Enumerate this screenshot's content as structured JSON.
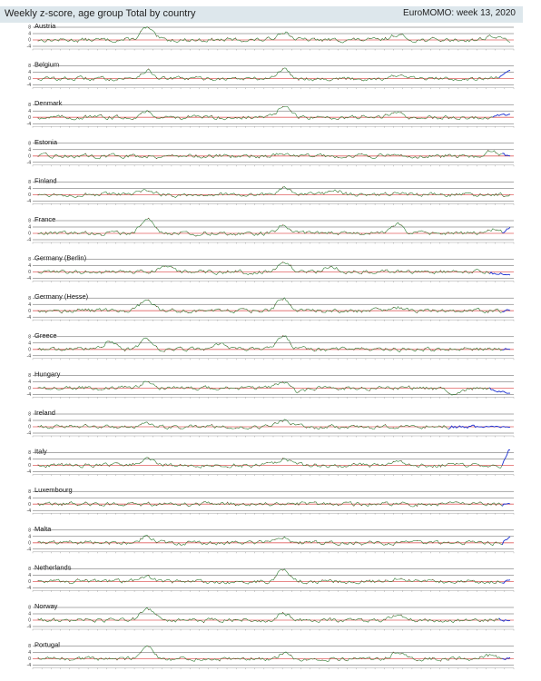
{
  "header": {
    "title": "Weekly z-score, age group Total by country",
    "source": "EuroMOMO: week 13, 2020"
  },
  "colors": {
    "historical_line": "#2e7d32",
    "recent_line": "#1a2fd0",
    "baseline": "#e06060",
    "gridline": "#555555",
    "header_bg": "#dde7ec",
    "point_marker": "#8b1a1a"
  },
  "chart_data": [
    {
      "type": "line",
      "title": "Austria",
      "ylim": [
        -4,
        8
      ],
      "yticks": [
        "8",
        "4",
        "0",
        "-4"
      ],
      "recent_points": 0,
      "peaks": [
        [
          0.23,
          7.5
        ],
        [
          0.52,
          5.5
        ],
        [
          0.76,
          3.5
        ],
        [
          0.96,
          2.5
        ]
      ],
      "end_value": -1.5
    },
    {
      "type": "line",
      "title": "Belgium",
      "ylim": [
        -4,
        8
      ],
      "yticks": [
        "8",
        "4",
        "0",
        "-4"
      ],
      "recent_points": 8,
      "peaks": [
        [
          0.23,
          5
        ],
        [
          0.52,
          6
        ],
        [
          0.76,
          2
        ]
      ],
      "end_value": 5
    },
    {
      "type": "line",
      "title": "Denmark",
      "ylim": [
        -4,
        8
      ],
      "yticks": [
        "8",
        "4",
        "0",
        "-4"
      ],
      "recent_points": 12,
      "peaks": [
        [
          0.23,
          3.5
        ],
        [
          0.52,
          7
        ],
        [
          0.76,
          3
        ]
      ],
      "end_value": 2
    },
    {
      "type": "line",
      "title": "Estonia",
      "ylim": [
        -4,
        8
      ],
      "yticks": [
        "8",
        "4",
        "0",
        "-4"
      ],
      "recent_points": 6,
      "peaks": [
        [
          0.52,
          2
        ],
        [
          0.96,
          2.5
        ]
      ],
      "end_value": 0
    },
    {
      "type": "line",
      "title": "Finland",
      "ylim": [
        -4,
        8
      ],
      "yticks": [
        "8",
        "4",
        "0",
        "-4"
      ],
      "recent_points": 0,
      "peaks": [
        [
          0.23,
          3
        ],
        [
          0.52,
          4
        ],
        [
          0.63,
          3
        ]
      ],
      "end_value": 0
    },
    {
      "type": "line",
      "title": "France",
      "ylim": [
        -4,
        8
      ],
      "yticks": [
        "8",
        "4",
        "0",
        "-4"
      ],
      "recent_points": 6,
      "peaks": [
        [
          0.23,
          10
        ],
        [
          0.52,
          5
        ],
        [
          0.76,
          6
        ],
        [
          0.96,
          3
        ]
      ],
      "end_value": 4
    },
    {
      "type": "line",
      "title": "Germany (Berlin)",
      "ylim": [
        -4,
        8
      ],
      "yticks": [
        "8",
        "4",
        "0",
        "-4"
      ],
      "recent_points": 14,
      "peaks": [
        [
          0.27,
          4
        ],
        [
          0.52,
          7
        ],
        [
          0.62,
          4
        ]
      ],
      "end_value": -2
    },
    {
      "type": "line",
      "title": "Germany (Hesse)",
      "ylim": [
        -4,
        8
      ],
      "yticks": [
        "8",
        "4",
        "0",
        "-4"
      ],
      "recent_points": 6,
      "peaks": [
        [
          0.23,
          7
        ],
        [
          0.52,
          8
        ],
        [
          0.76,
          2
        ]
      ],
      "end_value": 0
    },
    {
      "type": "line",
      "title": "Greece",
      "ylim": [
        -4,
        8
      ],
      "yticks": [
        "8",
        "4",
        "0",
        "-4"
      ],
      "recent_points": 6,
      "peaks": [
        [
          0.15,
          5
        ],
        [
          0.23,
          7
        ],
        [
          0.38,
          4
        ],
        [
          0.52,
          8
        ]
      ],
      "end_value": 0
    },
    {
      "type": "line",
      "title": "Hungary",
      "ylim": [
        -4,
        8
      ],
      "yticks": [
        "8",
        "4",
        "0",
        "-4"
      ],
      "recent_points": 14,
      "peaks": [
        [
          0.23,
          4
        ],
        [
          0.52,
          4
        ],
        [
          0.55,
          -3
        ],
        [
          0.88,
          -3
        ]
      ],
      "end_value": -3
    },
    {
      "type": "line",
      "title": "Ireland",
      "ylim": [
        -4,
        8
      ],
      "yticks": [
        "8",
        "4",
        "0",
        "-4"
      ],
      "recent_points": 40,
      "peaks": [
        [
          0.23,
          3
        ],
        [
          0.52,
          4
        ]
      ],
      "end_value": 0
    },
    {
      "type": "line",
      "title": "Italy",
      "ylim": [
        -4,
        8
      ],
      "yticks": [
        "8",
        "4",
        "0",
        "-4"
      ],
      "recent_points": 6,
      "peaks": [
        [
          0.23,
          5
        ],
        [
          0.52,
          4
        ],
        [
          0.76,
          3
        ]
      ],
      "end_value": 12
    },
    {
      "type": "line",
      "title": "Luxembourg",
      "ylim": [
        -4,
        8
      ],
      "yticks": [
        "8",
        "4",
        "0",
        "-4"
      ],
      "recent_points": 6,
      "peaks": [],
      "end_value": 0
    },
    {
      "type": "line",
      "title": "Malta",
      "ylim": [
        -4,
        8
      ],
      "yticks": [
        "8",
        "4",
        "0",
        "-4"
      ],
      "recent_points": 6,
      "peaks": [
        [
          0.23,
          4
        ],
        [
          0.52,
          3
        ]
      ],
      "end_value": 4
    },
    {
      "type": "line",
      "title": "Netherlands",
      "ylim": [
        -4,
        8
      ],
      "yticks": [
        "8",
        "4",
        "0",
        "-4"
      ],
      "recent_points": 6,
      "peaks": [
        [
          0.23,
          3
        ],
        [
          0.52,
          8
        ],
        [
          0.76,
          2
        ]
      ],
      "end_value": 1
    },
    {
      "type": "line",
      "title": "Norway",
      "ylim": [
        -4,
        8
      ],
      "yticks": [
        "8",
        "4",
        "0",
        "-4"
      ],
      "recent_points": 8,
      "peaks": [
        [
          0.23,
          7
        ],
        [
          0.52,
          4
        ],
        [
          0.76,
          4
        ]
      ],
      "end_value": 0
    },
    {
      "type": "line",
      "title": "Portugal",
      "ylim": [
        -4,
        8
      ],
      "yticks": [
        "8",
        "4",
        "0",
        "-4"
      ],
      "recent_points": 6,
      "peaks": [
        [
          0.23,
          7
        ],
        [
          0.52,
          3
        ],
        [
          0.76,
          4
        ],
        [
          0.96,
          2.5
        ]
      ],
      "end_value": 1
    }
  ]
}
